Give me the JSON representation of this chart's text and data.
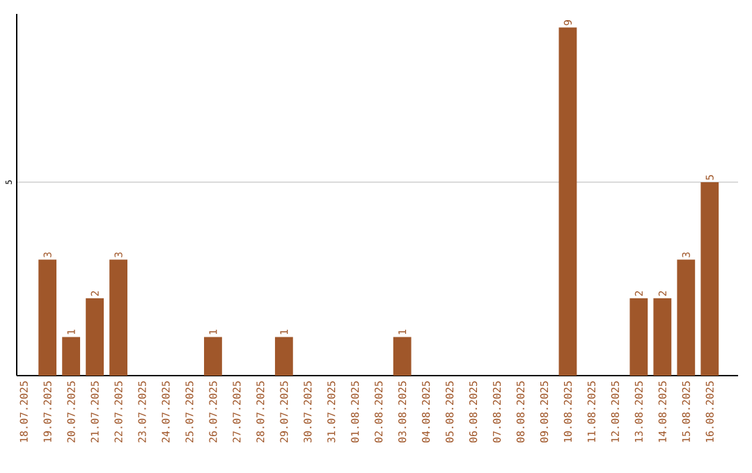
{
  "chart_data": {
    "type": "bar",
    "categories": [
      "18.07.2025",
      "19.07.2025",
      "20.07.2025",
      "21.07.2025",
      "22.07.2025",
      "23.07.2025",
      "24.07.2025",
      "25.07.2025",
      "26.07.2025",
      "27.07.2025",
      "28.07.2025",
      "29.07.2025",
      "30.07.2025",
      "31.07.2025",
      "01.08.2025",
      "02.08.2025",
      "03.08.2025",
      "04.08.2025",
      "05.08.2025",
      "06.08.2025",
      "07.08.2025",
      "08.08.2025",
      "09.08.2025",
      "10.08.2025",
      "11.08.2025",
      "12.08.2025",
      "13.08.2025",
      "14.08.2025",
      "15.08.2025",
      "16.08.2025"
    ],
    "values": [
      0,
      3,
      1,
      2,
      3,
      0,
      0,
      0,
      1,
      0,
      0,
      1,
      0,
      0,
      0,
      0,
      1,
      0,
      0,
      0,
      0,
      0,
      0,
      9,
      0,
      0,
      2,
      2,
      3,
      5
    ],
    "value_labels": [
      null,
      "3",
      "1",
      "2",
      "3",
      null,
      null,
      null,
      "1",
      null,
      null,
      "1",
      null,
      null,
      null,
      null,
      "1",
      null,
      null,
      null,
      null,
      null,
      null,
      "9",
      null,
      null,
      "2",
      "2",
      "3",
      "5"
    ],
    "color": "#a0572a",
    "ylim": [
      0,
      9.35
    ],
    "yticks": [
      5
    ],
    "grid": "y"
  }
}
